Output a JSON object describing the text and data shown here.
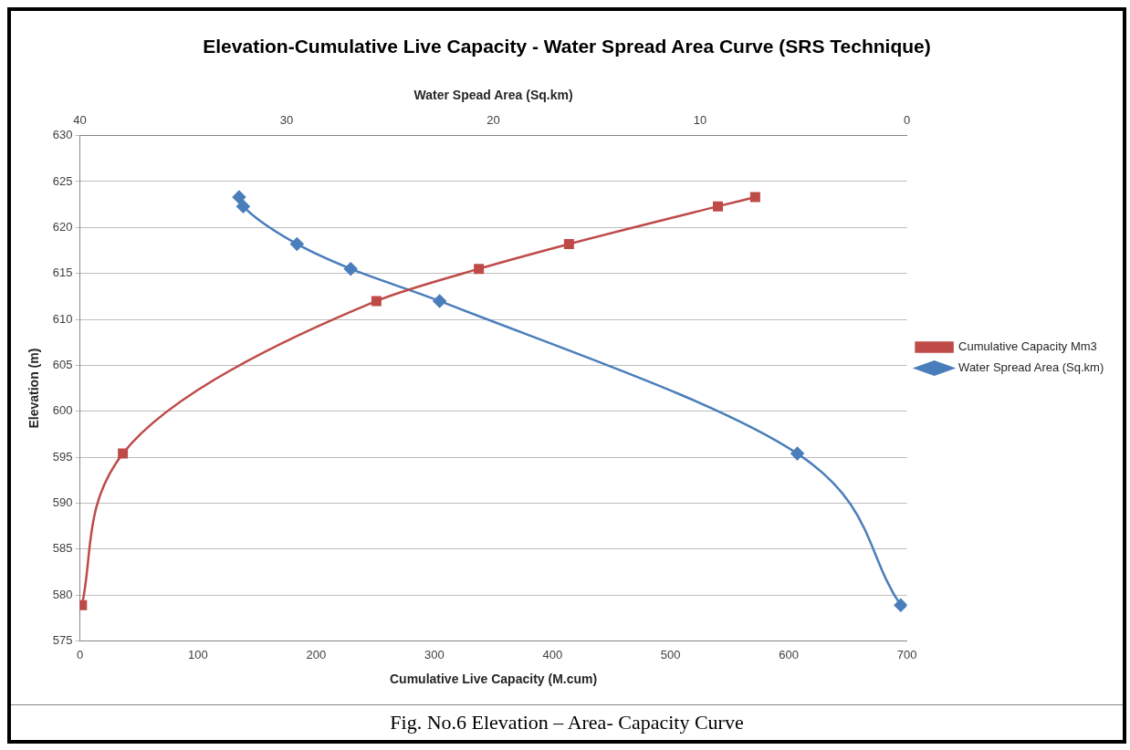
{
  "chart_data": {
    "type": "line",
    "title": "Elevation-Cumulative Live Capacity - Water Spread Area Curve (SRS Technique)",
    "xlabel": "Cumulative Live Capacity (M.cum)",
    "x2label": "Water Spead Area (Sq.km)",
    "ylabel": "Elevation (m)",
    "xlim": [
      0,
      700
    ],
    "xticks": [
      0,
      100,
      200,
      300,
      400,
      500,
      600,
      700
    ],
    "x2lim": [
      40,
      0
    ],
    "x2ticks": [
      40,
      30,
      20,
      10,
      0
    ],
    "ylim": [
      575,
      630
    ],
    "yticks": [
      575,
      580,
      585,
      590,
      595,
      600,
      605,
      610,
      615,
      620,
      625,
      630
    ],
    "grid": "y",
    "legend": "right",
    "series": [
      {
        "name": "Cumulative Capacity Mm3",
        "color": "#be4b48",
        "marker": "square",
        "x": [
          1.8,
          36.4,
          251,
          337.7,
          414,
          540,
          571.6
        ],
        "values": [
          578.9,
          595.4,
          612.0,
          615.5,
          618.2,
          622.3,
          623.3
        ]
      },
      {
        "name": "Water Spread Area (Sq.km)",
        "color": "#4a7ebb",
        "marker": "diamond",
        "axis": "x2",
        "x": [
          0.3,
          5.3,
          22.6,
          26.9,
          29.5,
          32.1,
          32.3
        ],
        "values": [
          578.9,
          595.4,
          612.0,
          615.5,
          618.2,
          622.3,
          623.3
        ]
      }
    ],
    "annotations": [
      "Fig. No.6  Elevation – Area- Capacity Curve"
    ]
  }
}
